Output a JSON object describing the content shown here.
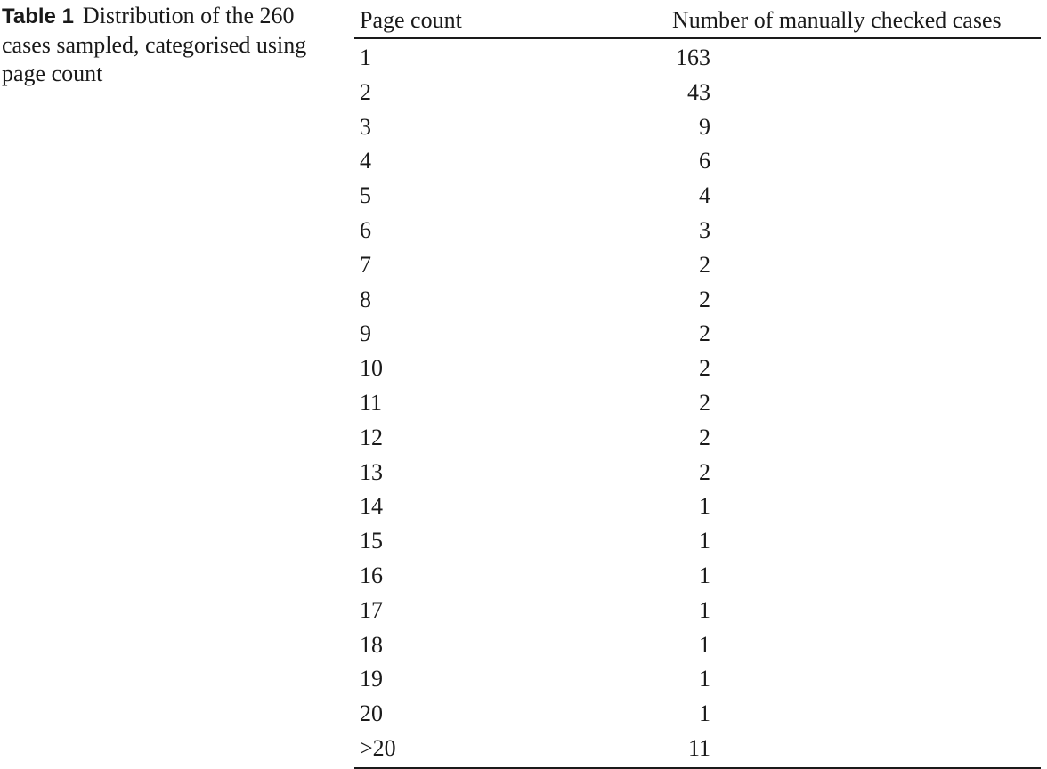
{
  "caption": {
    "label": "Table 1",
    "text": "Distribution of the 260 cases sampled, categorised using page count"
  },
  "table": {
    "headers": [
      "Page count",
      "Number of manually checked cases"
    ],
    "rows": [
      [
        "1",
        "163"
      ],
      [
        "2",
        "43"
      ],
      [
        "3",
        "9"
      ],
      [
        "4",
        "6"
      ],
      [
        "5",
        "4"
      ],
      [
        "6",
        "3"
      ],
      [
        "7",
        "2"
      ],
      [
        "8",
        "2"
      ],
      [
        "9",
        "2"
      ],
      [
        "10",
        "2"
      ],
      [
        "11",
        "2"
      ],
      [
        "12",
        "2"
      ],
      [
        "13",
        "2"
      ],
      [
        "14",
        "1"
      ],
      [
        "15",
        "1"
      ],
      [
        "16",
        "1"
      ],
      [
        "17",
        "1"
      ],
      [
        "18",
        "1"
      ],
      [
        "19",
        "1"
      ],
      [
        "20",
        "1"
      ],
      [
        ">20",
        "11"
      ]
    ]
  }
}
